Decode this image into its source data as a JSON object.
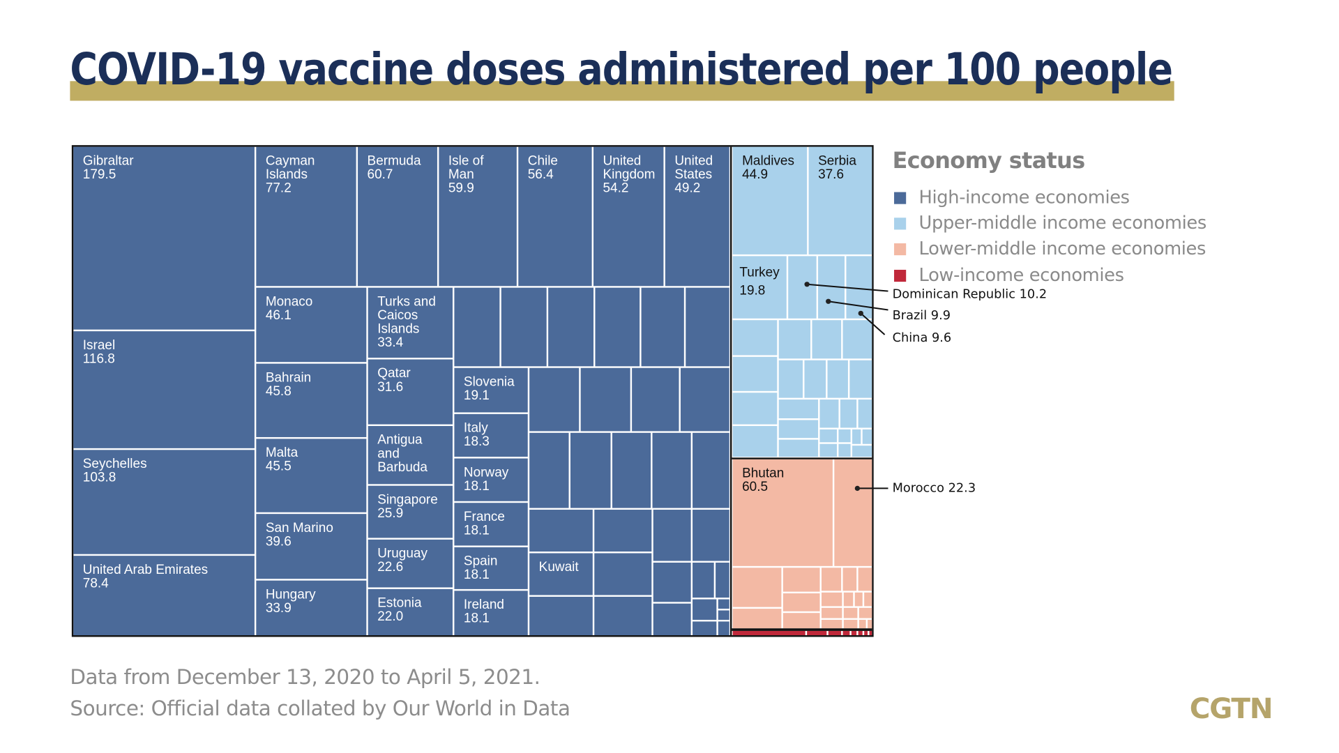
{
  "title": "COVID-19 vaccine doses administered per 100 people",
  "legend": {
    "title": "Economy status",
    "items": [
      {
        "label": "High-income economies",
        "color": "#4b6a99"
      },
      {
        "label": "Upper-middle income economies",
        "color": "#a9d1eb"
      },
      {
        "label": "Lower-middle income economies",
        "color": "#f3b9a4"
      },
      {
        "label": "Low-income economies",
        "color": "#c0283a"
      }
    ]
  },
  "annotations": [
    {
      "label": "Dominican Republic 10.2"
    },
    {
      "label": "Brazil 9.9"
    },
    {
      "label": "China 9.6"
    },
    {
      "label": "Morocco 22.3"
    }
  ],
  "footer": {
    "note": "Data from December 13, 2020 to April 5, 2021.",
    "source": "Source: Official data collated by Our World in Data"
  },
  "logo": "CGTN",
  "chart_data": {
    "type": "treemap",
    "title": "COVID-19 vaccine doses administered per 100 people",
    "items": [
      {
        "name": "Gibraltar",
        "value": "179.5",
        "group": "High-income economies"
      },
      {
        "name": "Israel",
        "value": "116.8",
        "group": "High-income economies"
      },
      {
        "name": "Seychelles",
        "value": "103.8",
        "group": "High-income economies"
      },
      {
        "name": "United Arab Emirates",
        "value": "78.4",
        "group": "High-income economies"
      },
      {
        "name": "Cayman\nIslands",
        "value": "77.2",
        "group": "High-income economies"
      },
      {
        "name": "Bermuda",
        "value": "60.7",
        "group": "High-income economies"
      },
      {
        "name": "Isle of\nMan",
        "value": "59.9",
        "group": "High-income economies"
      },
      {
        "name": "Chile",
        "value": "56.4",
        "group": "High-income economies"
      },
      {
        "name": "United\nKingdom",
        "value": "54.2",
        "group": "High-income economies"
      },
      {
        "name": "United\nStates",
        "value": "49.2",
        "group": "High-income economies"
      },
      {
        "name": "Monaco",
        "value": "46.1",
        "group": "High-income economies"
      },
      {
        "name": "Bahrain",
        "value": "45.8",
        "group": "High-income economies"
      },
      {
        "name": "Malta",
        "value": "45.5",
        "group": "High-income economies"
      },
      {
        "name": "San Marino",
        "value": "39.6",
        "group": "High-income economies"
      },
      {
        "name": "Hungary",
        "value": "33.9",
        "group": "High-income economies"
      },
      {
        "name": "Turks and\nCaicos\nIslands",
        "value": "33.4",
        "group": "High-income economies"
      },
      {
        "name": "Qatar",
        "value": "31.6",
        "group": "High-income economies"
      },
      {
        "name": "Antigua\nand\nBarbuda",
        "value": "",
        "group": "High-income economies"
      },
      {
        "name": "Singapore",
        "value": "25.9",
        "group": "High-income economies"
      },
      {
        "name": "Uruguay",
        "value": "22.6",
        "group": "High-income economies"
      },
      {
        "name": "Estonia",
        "value": "22.0",
        "group": "High-income economies"
      },
      {
        "name": "Slovenia",
        "value": "19.1",
        "group": "High-income economies"
      },
      {
        "name": "Italy",
        "value": "18.3",
        "group": "High-income economies"
      },
      {
        "name": "Norway",
        "value": "18.1",
        "group": "High-income economies"
      },
      {
        "name": "France",
        "value": "18.1",
        "group": "High-income economies"
      },
      {
        "name": "Spain",
        "value": "18.1",
        "group": "High-income economies"
      },
      {
        "name": "Ireland",
        "value": "18.1",
        "group": "High-income economies"
      },
      {
        "name": "Kuwait",
        "value": "",
        "group": "High-income economies"
      },
      {
        "name": "Maldives",
        "value": "44.9",
        "group": "Upper-middle income economies"
      },
      {
        "name": "Serbia",
        "value": "37.6",
        "group": "Upper-middle income economies"
      },
      {
        "name": "Turkey",
        "value": "19.8",
        "group": "Upper-middle income economies"
      },
      {
        "name": "Bhutan",
        "value": "60.5",
        "group": "Lower-middle income economies"
      }
    ]
  }
}
